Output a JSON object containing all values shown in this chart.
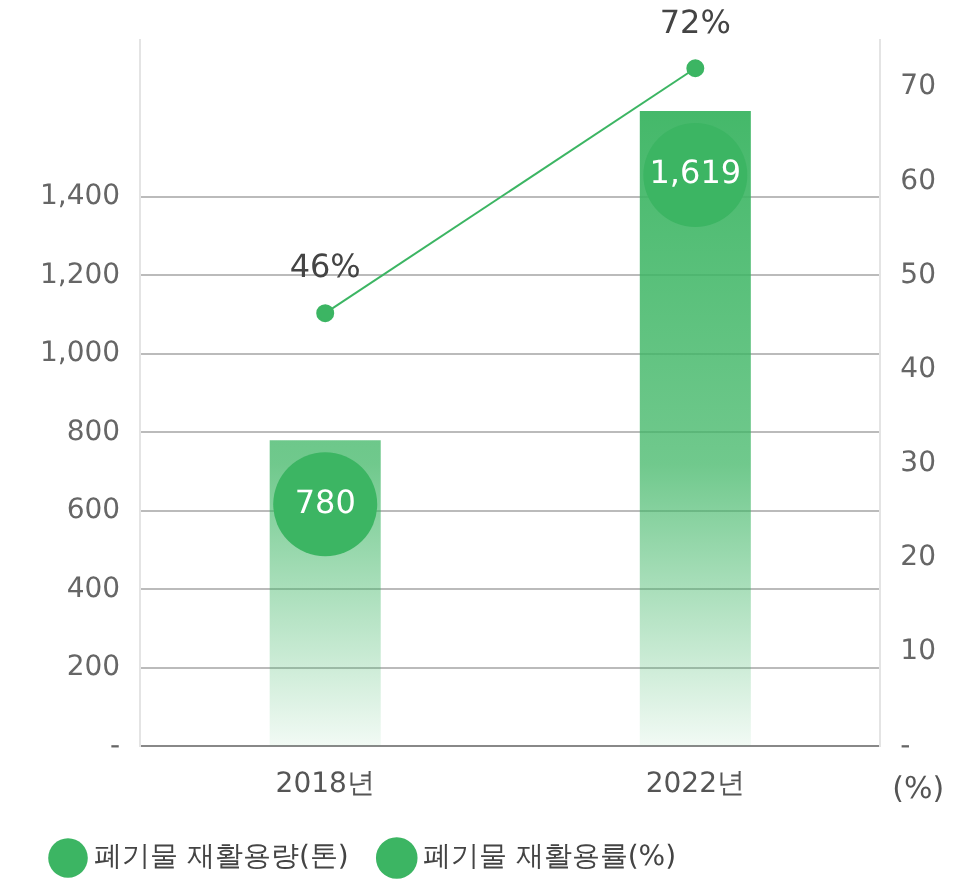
{
  "chart_data": {
    "type": "bar",
    "categories": [
      "2018년",
      "2022년"
    ],
    "series": [
      {
        "name": "폐기물 재활용량(톤)",
        "color": "#3cb563",
        "values": [
          780,
          1619
        ],
        "value_labels": [
          "780",
          "1,619"
        ]
      },
      {
        "name": "폐기물 재활용률(%)",
        "type": "line",
        "axis": "y2",
        "color": "#3cb563",
        "values": [
          46,
          72
        ],
        "value_labels": [
          "46%",
          "72%"
        ],
        "marker": "circle"
      }
    ],
    "ylim": [
      0,
      1800
    ],
    "yticks": [
      {
        "value": 0,
        "label": "-"
      },
      {
        "value": 200,
        "label": "200"
      },
      {
        "value": 400,
        "label": "400"
      },
      {
        "value": 600,
        "label": "600"
      },
      {
        "value": 800,
        "label": "800"
      },
      {
        "value": 1000,
        "label": "1,000"
      },
      {
        "value": 1200,
        "label": "1,200"
      },
      {
        "value": 1400,
        "label": "1,400"
      }
    ],
    "y2lim": [
      0,
      75
    ],
    "y2ticks": [
      {
        "value": 0,
        "label": "-"
      },
      10,
      20,
      30,
      40,
      50,
      60,
      70
    ],
    "y2label": "(%)",
    "grid": "y",
    "legend": "bottom"
  }
}
